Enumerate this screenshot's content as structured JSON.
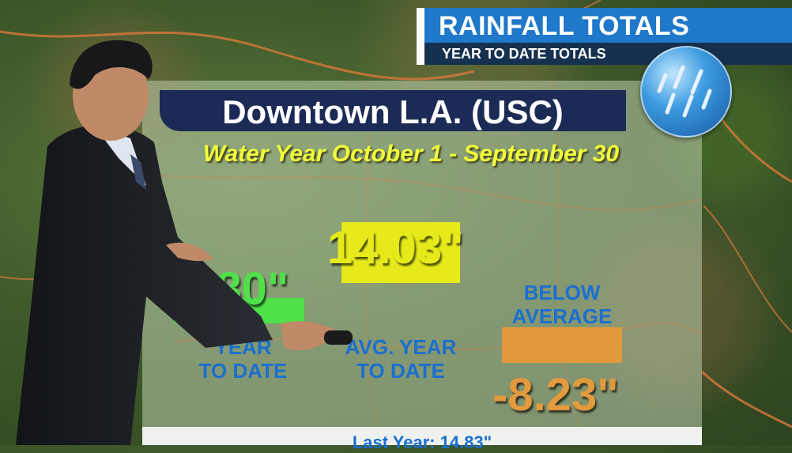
{
  "header": {
    "title": "RAINFALL TOTALS",
    "subtitle": "YEAR TO DATE TOTALS"
  },
  "location": "Downtown L.A. (USC)",
  "water_year_note": "Water Year October 1 - September 30",
  "footer_note": "Last Year: 14.83\"",
  "icons": {
    "rain": "rain-icon"
  },
  "colors": {
    "ytd": "#4fe04a",
    "avg": "#e6ea1a",
    "diff": "#e39a3c",
    "label": "#1a6fd0",
    "title_bar": "#1f78c9",
    "subtitle_bar": "#16304f",
    "location_bar": "#1c2b55"
  },
  "chart_data": {
    "type": "bar",
    "unit": "in",
    "categories": [
      "YEAR TO DATE",
      "AVG. YEAR TO DATE",
      "BELOW AVERAGE"
    ],
    "values": [
      5.8,
      14.03,
      -8.23
    ],
    "value_labels": [
      "5.80\"",
      "14.03\"",
      "-8.23\""
    ],
    "category_labels": [
      [
        "YEAR",
        "TO DATE"
      ],
      [
        "AVG. YEAR",
        "TO DATE"
      ],
      [
        "BELOW",
        "AVERAGE"
      ]
    ],
    "last_year": 14.83
  }
}
